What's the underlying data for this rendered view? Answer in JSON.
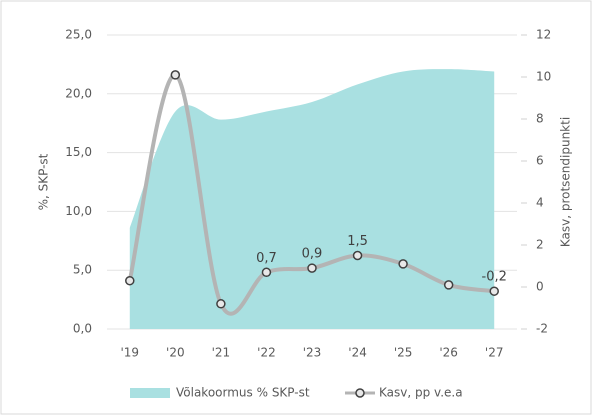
{
  "chart_data": {
    "type": "area-line",
    "categories": [
      "'19",
      "'20",
      "'21",
      "'22",
      "'23",
      "'24",
      "'25",
      "'26",
      "'27"
    ],
    "series": [
      {
        "name": "Võlakoormus % SKP-st",
        "type": "area",
        "color": "#a9e0e1",
        "axis": "y",
        "values": [
          8.6,
          18.5,
          17.8,
          18.5,
          19.3,
          20.8,
          21.9,
          22.1,
          21.9
        ]
      },
      {
        "name": "Kasv, pp v.e.a",
        "type": "line",
        "color": "#b4b4b4",
        "axis": "y2",
        "values": [
          0.3,
          10.1,
          -0.8,
          0.7,
          0.9,
          1.5,
          1.1,
          0.1,
          -0.2
        ],
        "value_labels": [
          null,
          null,
          null,
          "0,7",
          "0,9",
          "1,5",
          null,
          null,
          "-0,2"
        ]
      }
    ],
    "ylabel": "%, SKP-st",
    "y2label": "Kasv, protsendipunkti",
    "ylim": [
      0,
      25
    ],
    "yticks": [
      {
        "value": 0,
        "label": "0,0"
      },
      {
        "value": 5,
        "label": "5,0"
      },
      {
        "value": 10,
        "label": "10,0"
      },
      {
        "value": 15,
        "label": "15,0"
      },
      {
        "value": 20,
        "label": "20,0"
      },
      {
        "value": 25,
        "label": "25,0"
      }
    ],
    "y2lim": [
      -2,
      12
    ],
    "y2ticks": [
      -2,
      0,
      2,
      4,
      6,
      8,
      10,
      12
    ],
    "grid": true,
    "legend": "bottom"
  }
}
